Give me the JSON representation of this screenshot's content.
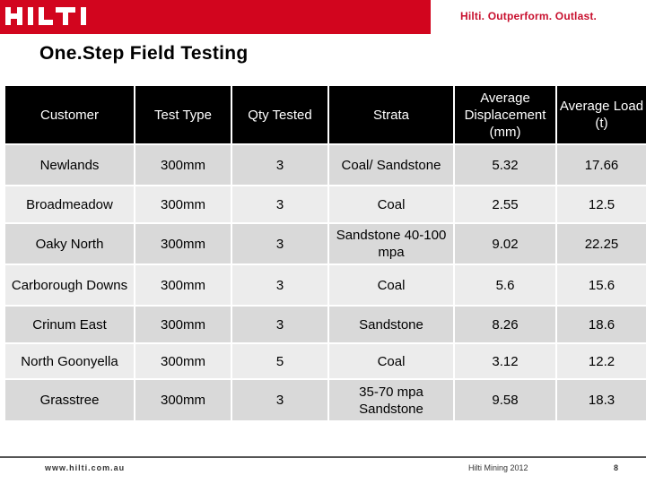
{
  "header": {
    "logo_text": "HILTI",
    "tagline": "Hilti. Outperform. Outlast.",
    "brand_color": "#d2051e"
  },
  "title": "One.Step Field Testing",
  "table": {
    "columns": [
      "Customer",
      "Test Type",
      "Qty Tested",
      "Strata",
      "Average Displacement (mm)",
      "Average Load (t)"
    ],
    "rows": [
      [
        "Newlands",
        "300mm",
        "3",
        "Coal/ Sandstone",
        "5.32",
        "17.66"
      ],
      [
        "Broadmeadow",
        "300mm",
        "3",
        "Coal",
        "2.55",
        "12.5"
      ],
      [
        "Oaky North",
        "300mm",
        "3",
        "Sandstone 40-100 mpa",
        "9.02",
        "22.25"
      ],
      [
        "Carborough Downs",
        "300mm",
        "3",
        "Coal",
        "5.6",
        "15.6"
      ],
      [
        "Crinum East",
        "300mm",
        "3",
        "Sandstone",
        "8.26",
        "18.6"
      ],
      [
        "North Goonyella",
        "300mm",
        "5",
        "Coal",
        "3.12",
        "12.2"
      ],
      [
        "Grasstree",
        "300mm",
        "3",
        "35-70 mpa Sandstone",
        "9.58",
        "18.3"
      ]
    ]
  },
  "footer": {
    "website": "www.hilti.com.au",
    "event": "Hilti Mining 2012",
    "page_number": "8"
  }
}
